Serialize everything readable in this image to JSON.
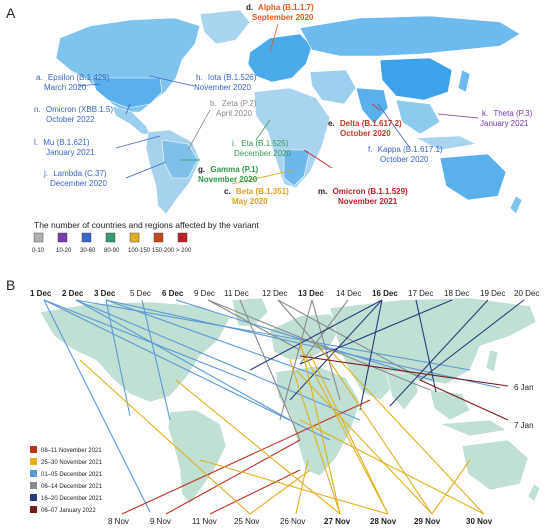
{
  "panel_a": {
    "letter": "A",
    "variants": [
      {
        "letter": "d.",
        "name": "Alpha (B.1.1.7)",
        "date": "September 2020",
        "color": "#e05a1e",
        "bold": true
      },
      {
        "letter": "a.",
        "name": "Epsilon (B.1.429)",
        "date": "March 2020",
        "color": "#3a64c8",
        "bold": false
      },
      {
        "letter": "h.",
        "name": "Iota (B.1.526)",
        "date": "November 2020",
        "color": "#3a64c8",
        "bold": false
      },
      {
        "letter": "b.",
        "name": "Zeta (P.2)",
        "date": "April 2020",
        "color": "#8a8a8a",
        "bold": false
      },
      {
        "letter": "n.",
        "name": "Omicron (XBB.1.5)",
        "date": "October 2022",
        "color": "#3a64c8",
        "bold": false
      },
      {
        "letter": "l.",
        "name": "Mu (B.1.621)",
        "date": "January 2021",
        "color": "#3a64c8",
        "bold": false
      },
      {
        "letter": "j.",
        "name": "Lambda (C.37)",
        "date": "December 2020",
        "color": "#3a64c8",
        "bold": false
      },
      {
        "letter": "i.",
        "name": "Eta (B.1.525)",
        "date": "December 2020",
        "color": "#3a9a5a",
        "bold": false
      },
      {
        "letter": "g.",
        "name": "Gamma (P.1)",
        "date": "November 2020",
        "color": "#2e9a4a",
        "bold": true
      },
      {
        "letter": "c.",
        "name": "Beta (B.1.351)",
        "date": "May 2020",
        "color": "#e0a020",
        "bold": true
      },
      {
        "letter": "e.",
        "name": "Delta (B.1.617.2)",
        "date": "October 2020",
        "color": "#c03a2a",
        "bold": true
      },
      {
        "letter": "f.",
        "name": "Kappa (B.1.617.1)",
        "date": "October 2020",
        "color": "#3a64c8",
        "bold": false
      },
      {
        "letter": "k.",
        "name": "Theta (P.3)",
        "date": "January 2021",
        "color": "#7a3ab0",
        "bold": false
      },
      {
        "letter": "m.",
        "name": "Omicron (B.1.1.529)",
        "date": "November 2021",
        "color": "#c0202a",
        "bold": true
      }
    ],
    "legend_title": "The number of countries and regions affected by the variant",
    "legend_bins": [
      {
        "label": "0-10",
        "color": "#b0b0b0"
      },
      {
        "label": "10-20",
        "color": "#7a3ab0"
      },
      {
        "label": "30-60",
        "color": "#3a64c8"
      },
      {
        "label": "80-90",
        "color": "#3a9a70"
      },
      {
        "label": "100-150",
        "color": "#e0b020"
      },
      {
        "label": "150-200",
        "color": "#c04a20"
      },
      {
        "label": "> 200",
        "color": "#c0202a"
      }
    ]
  },
  "panel_b": {
    "letter": "B",
    "top_dates": [
      {
        "label": "1 Dec",
        "bold": true
      },
      {
        "label": "2 Dec",
        "bold": true
      },
      {
        "label": "3 Dec",
        "bold": true
      },
      {
        "label": "5 Dec",
        "bold": false
      },
      {
        "label": "6 Dec",
        "bold": true
      },
      {
        "label": "9 Dec",
        "bold": false
      },
      {
        "label": "11 Dec",
        "bold": false
      },
      {
        "label": "12 Dec",
        "bold": false
      },
      {
        "label": "13 Dec",
        "bold": true
      },
      {
        "label": "14 Dec",
        "bold": false
      },
      {
        "label": "16 Dec",
        "bold": true
      },
      {
        "label": "17 Dec",
        "bold": false
      },
      {
        "label": "18 Dec",
        "bold": false
      },
      {
        "label": "19 Dec",
        "bold": false
      },
      {
        "label": "20 Dec",
        "bold": false
      }
    ],
    "bottom_dates": [
      {
        "label": "8 Nov",
        "bold": false
      },
      {
        "label": "9 Nov",
        "bold": false
      },
      {
        "label": "11 Nov",
        "bold": false
      },
      {
        "label": "25 Nov",
        "bold": false
      },
      {
        "label": "26 Nov",
        "bold": false
      },
      {
        "label": "27 Nov",
        "bold": true
      },
      {
        "label": "28 Nov",
        "bold": true
      },
      {
        "label": "29 Nov",
        "bold": true
      },
      {
        "label": "30 Nov",
        "bold": true
      }
    ],
    "right_dates": [
      {
        "label": "6 Jan"
      },
      {
        "label": "7 Jan"
      }
    ],
    "legend": [
      {
        "label": "08–11 November 2021",
        "color": "#c03020"
      },
      {
        "label": "25–30 November 2021",
        "color": "#e0b020"
      },
      {
        "label": "01–05 December 2021",
        "color": "#5a9ad8"
      },
      {
        "label": "06–14 December 2021",
        "color": "#8a8a8a"
      },
      {
        "label": "16–20 December 2021",
        "color": "#2a3a80"
      },
      {
        "label": "06–07 January 2022",
        "color": "#7a1a1a"
      }
    ]
  }
}
